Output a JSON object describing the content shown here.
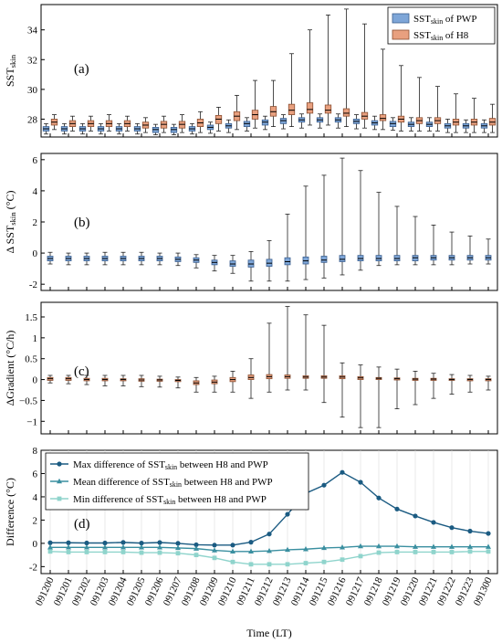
{
  "x_labels": [
    "091200",
    "091201",
    "091202",
    "091203",
    "091204",
    "091205",
    "091206",
    "091207",
    "091208",
    "091209",
    "091210",
    "091211",
    "091212",
    "091213",
    "091214",
    "091215",
    "091216",
    "091217",
    "091218",
    "091219",
    "091220",
    "091221",
    "091222",
    "091223",
    "091300"
  ],
  "xlabel": "Time (LT)",
  "colors": {
    "pwp": "#7ea6d8",
    "pwp_edge": "#3b5f8f",
    "h8": "#e8a07f",
    "h8_edge": "#8a4e30",
    "whisker": "#222222",
    "max": "#1b5b82",
    "mean": "#3a8fa0",
    "min": "#8fd4cc"
  },
  "chart_data": [
    {
      "type": "box",
      "panel_label": "(a)",
      "ylabel_main": "SST",
      "ylabel_sub": "skin",
      "ylim": [
        26.8,
        35.7
      ],
      "yticks": [
        28,
        30,
        32,
        34
      ],
      "legend": {
        "position": "top-right",
        "entries": [
          {
            "pre": "SST",
            "sub": "skin",
            "post": " of PWP",
            "key": "pwp"
          },
          {
            "pre": "SST",
            "sub": "skin",
            "post": " of H8",
            "key": "h8"
          }
        ]
      },
      "series": [
        {
          "name": "SST_skin of PWP",
          "key": "pwp",
          "q1": [
            27.2,
            27.2,
            27.2,
            27.2,
            27.2,
            27.2,
            27.1,
            27.1,
            27.2,
            27.3,
            27.4,
            27.5,
            27.6,
            27.7,
            27.8,
            27.8,
            27.8,
            27.7,
            27.6,
            27.5,
            27.5,
            27.5,
            27.4,
            27.4,
            27.4
          ],
          "med": [
            27.35,
            27.35,
            27.35,
            27.35,
            27.35,
            27.35,
            27.3,
            27.3,
            27.35,
            27.45,
            27.55,
            27.7,
            27.8,
            27.9,
            27.95,
            27.95,
            27.95,
            27.85,
            27.75,
            27.7,
            27.65,
            27.65,
            27.55,
            27.55,
            27.55
          ],
          "q3": [
            27.5,
            27.5,
            27.5,
            27.5,
            27.5,
            27.5,
            27.45,
            27.45,
            27.5,
            27.6,
            27.7,
            27.85,
            27.95,
            28.05,
            28.1,
            28.1,
            28.1,
            28.0,
            27.9,
            27.85,
            27.8,
            27.8,
            27.7,
            27.7,
            27.7
          ],
          "lo": [
            27.0,
            27.0,
            27.0,
            27.0,
            27.0,
            27.0,
            26.95,
            26.95,
            27.0,
            27.05,
            27.1,
            27.2,
            27.3,
            27.35,
            27.4,
            27.4,
            27.4,
            27.35,
            27.3,
            27.25,
            27.2,
            27.2,
            27.1,
            27.1,
            27.1
          ],
          "hi": [
            27.7,
            27.7,
            27.7,
            27.7,
            27.7,
            27.7,
            27.65,
            27.65,
            27.7,
            27.8,
            27.95,
            28.1,
            28.2,
            28.3,
            28.35,
            28.35,
            28.35,
            28.3,
            28.2,
            28.1,
            28.1,
            28.1,
            28.0,
            27.95,
            27.95
          ]
        },
        {
          "name": "SST_skin of H8",
          "key": "h8",
          "q1": [
            27.6,
            27.5,
            27.5,
            27.5,
            27.5,
            27.4,
            27.4,
            27.4,
            27.5,
            27.7,
            27.9,
            28.0,
            28.2,
            28.3,
            28.4,
            28.4,
            28.2,
            28.0,
            27.9,
            27.8,
            27.7,
            27.7,
            27.6,
            27.6,
            27.6
          ],
          "med": [
            27.8,
            27.7,
            27.7,
            27.7,
            27.7,
            27.6,
            27.65,
            27.65,
            27.75,
            28.0,
            28.2,
            28.3,
            28.5,
            28.6,
            28.65,
            28.6,
            28.4,
            28.2,
            28.05,
            28.0,
            27.9,
            27.9,
            27.8,
            27.8,
            27.8
          ],
          "q3": [
            28.0,
            27.9,
            27.9,
            27.9,
            27.9,
            27.8,
            27.85,
            27.85,
            28.0,
            28.25,
            28.5,
            28.6,
            28.85,
            29.0,
            29.1,
            28.95,
            28.7,
            28.45,
            28.3,
            28.2,
            28.1,
            28.1,
            28.0,
            28.0,
            28.05
          ],
          "lo": [
            27.3,
            27.2,
            27.2,
            27.2,
            27.2,
            27.1,
            27.1,
            27.1,
            27.1,
            27.2,
            27.3,
            27.4,
            27.5,
            27.5,
            27.6,
            27.6,
            27.5,
            27.4,
            27.3,
            27.2,
            27.2,
            27.2,
            27.1,
            27.1,
            27.1
          ],
          "hi": [
            28.3,
            28.2,
            28.2,
            28.3,
            28.2,
            28.1,
            28.2,
            28.3,
            28.5,
            28.8,
            29.6,
            30.6,
            30.6,
            32.4,
            34.0,
            35.0,
            35.4,
            34.4,
            32.7,
            31.6,
            30.8,
            30.2,
            29.7,
            29.4,
            29.0
          ]
        }
      ]
    },
    {
      "type": "box",
      "panel_label": "(b)",
      "ylabel_main": "Δ SST",
      "ylabel_sub": "skin",
      "ylabel_unit": " (°C)",
      "ylim": [
        -2.4,
        6.4
      ],
      "yticks": [
        -2,
        0,
        2,
        4,
        6
      ],
      "series": [
        {
          "name": "Δ SST_skin",
          "key": "pwp",
          "q1": [
            -0.5,
            -0.5,
            -0.5,
            -0.5,
            -0.5,
            -0.5,
            -0.5,
            -0.55,
            -0.6,
            -0.75,
            -0.85,
            -0.9,
            -0.85,
            -0.75,
            -0.7,
            -0.6,
            -0.55,
            -0.5,
            -0.5,
            -0.5,
            -0.5,
            -0.45,
            -0.45,
            -0.45,
            -0.45
          ],
          "med": [
            -0.35,
            -0.35,
            -0.35,
            -0.35,
            -0.35,
            -0.35,
            -0.35,
            -0.4,
            -0.45,
            -0.6,
            -0.7,
            -0.7,
            -0.65,
            -0.55,
            -0.5,
            -0.45,
            -0.4,
            -0.35,
            -0.35,
            -0.35,
            -0.3,
            -0.3,
            -0.3,
            -0.3,
            -0.3
          ],
          "q3": [
            -0.2,
            -0.2,
            -0.2,
            -0.2,
            -0.2,
            -0.2,
            -0.2,
            -0.25,
            -0.3,
            -0.45,
            -0.5,
            -0.45,
            -0.4,
            -0.3,
            -0.25,
            -0.2,
            -0.15,
            -0.15,
            -0.15,
            -0.15,
            -0.15,
            -0.15,
            -0.15,
            -0.15,
            -0.15
          ],
          "lo": [
            -0.7,
            -0.75,
            -0.75,
            -0.75,
            -0.75,
            -0.75,
            -0.75,
            -0.8,
            -0.95,
            -1.15,
            -1.3,
            -1.8,
            -1.8,
            -1.8,
            -1.7,
            -1.6,
            -1.4,
            -1.1,
            -0.8,
            -0.75,
            -0.75,
            -0.75,
            -0.75,
            -0.7,
            -0.7
          ],
          "hi": [
            0.05,
            0.0,
            0.0,
            0.05,
            0.05,
            0.05,
            0.0,
            0.0,
            -0.1,
            -0.15,
            -0.15,
            0.1,
            0.8,
            2.5,
            4.3,
            5.0,
            6.1,
            5.3,
            3.9,
            3.0,
            2.35,
            1.8,
            1.35,
            1.1,
            0.9
          ]
        }
      ]
    },
    {
      "type": "box",
      "panel_label": "(c)",
      "ylabel_main": "ΔGradient (°C/h)",
      "ylim": [
        -1.3,
        1.85
      ],
      "yticks": [
        -1,
        -0.5,
        0,
        0.5,
        1,
        1.5
      ],
      "ytick_labels": [
        "−1",
        "−0.5",
        "0",
        "0.5",
        "1",
        "1.5"
      ],
      "series": [
        {
          "name": "ΔGradient",
          "key": "h8",
          "q1": [
            -0.02,
            -0.02,
            -0.03,
            -0.03,
            -0.03,
            -0.04,
            -0.04,
            -0.05,
            -0.12,
            -0.1,
            -0.05,
            0.0,
            0.02,
            0.03,
            0.03,
            0.03,
            0.02,
            0.0,
            0.0,
            -0.01,
            -0.02,
            -0.02,
            -0.02,
            -0.03,
            -0.03
          ],
          "med": [
            0.02,
            0.02,
            0.0,
            0.0,
            0.0,
            -0.01,
            -0.01,
            -0.02,
            -0.08,
            -0.06,
            0.0,
            0.05,
            0.07,
            0.07,
            0.06,
            0.06,
            0.06,
            0.04,
            0.03,
            0.02,
            0.01,
            0.01,
            0.0,
            0.0,
            0.0
          ],
          "q3": [
            0.05,
            0.05,
            0.03,
            0.03,
            0.02,
            0.02,
            0.01,
            0.0,
            -0.03,
            -0.01,
            0.05,
            0.11,
            0.12,
            0.11,
            0.09,
            0.09,
            0.09,
            0.07,
            0.05,
            0.04,
            0.03,
            0.03,
            0.02,
            0.02,
            0.02
          ],
          "lo": [
            -0.08,
            -0.1,
            -0.12,
            -0.15,
            -0.15,
            -0.17,
            -0.18,
            -0.2,
            -0.3,
            -0.3,
            -0.3,
            -0.45,
            -0.3,
            -0.25,
            -0.25,
            -0.55,
            -0.9,
            -1.15,
            -1.15,
            -0.7,
            -0.6,
            -0.45,
            -0.35,
            -0.3,
            -0.25
          ],
          "hi": [
            0.1,
            0.1,
            0.1,
            0.1,
            0.1,
            0.1,
            0.08,
            0.06,
            0.05,
            0.08,
            0.2,
            0.5,
            1.35,
            1.75,
            1.55,
            1.3,
            0.4,
            0.35,
            0.3,
            0.25,
            0.2,
            0.15,
            0.12,
            0.1,
            0.08
          ]
        }
      ]
    },
    {
      "type": "line",
      "panel_label": "(d)",
      "ylabel_main": "Difference (°C)",
      "ylim": [
        -2.6,
        8.0
      ],
      "yticks": [
        -2,
        0,
        2,
        4,
        6,
        8
      ],
      "legend": {
        "position": "top-left",
        "entries": [
          {
            "pre": "Max difference of SST",
            "sub": "skin",
            "post": " between H8 and PWP",
            "key": "max"
          },
          {
            "pre": "Mean difference of SST",
            "sub": "skin",
            "post": " between H8 and PWP",
            "key": "mean"
          },
          {
            "pre": "Min difference of SST",
            "sub": "skin",
            "post": " between H8 and PWP",
            "key": "min"
          }
        ]
      },
      "series": [
        {
          "name": "Max difference of SST_skin between H8 and PWP",
          "key": "max",
          "marker": "circle",
          "values": [
            0.05,
            0.05,
            0.03,
            0.03,
            0.08,
            0.02,
            0.07,
            0.0,
            -0.12,
            -0.15,
            -0.15,
            0.1,
            0.8,
            2.5,
            4.3,
            5.0,
            6.1,
            5.25,
            3.9,
            2.95,
            2.35,
            1.8,
            1.35,
            1.05,
            0.85
          ]
        },
        {
          "name": "Mean difference of SST_skin between H8 and PWP",
          "key": "mean",
          "marker": "triangle",
          "values": [
            -0.35,
            -0.35,
            -0.35,
            -0.35,
            -0.35,
            -0.35,
            -0.35,
            -0.4,
            -0.45,
            -0.6,
            -0.7,
            -0.7,
            -0.65,
            -0.55,
            -0.5,
            -0.4,
            -0.35,
            -0.25,
            -0.25,
            -0.25,
            -0.3,
            -0.3,
            -0.3,
            -0.3,
            -0.3
          ]
        },
        {
          "name": "Min difference of SST_skin between H8 and PWP",
          "key": "min",
          "marker": "square",
          "values": [
            -0.7,
            -0.75,
            -0.75,
            -0.75,
            -0.75,
            -0.8,
            -0.8,
            -0.85,
            -1.0,
            -1.25,
            -1.6,
            -1.8,
            -1.8,
            -1.8,
            -1.7,
            -1.6,
            -1.4,
            -1.1,
            -0.8,
            -0.75,
            -0.75,
            -0.75,
            -0.75,
            -0.7,
            -0.7
          ]
        }
      ]
    }
  ]
}
